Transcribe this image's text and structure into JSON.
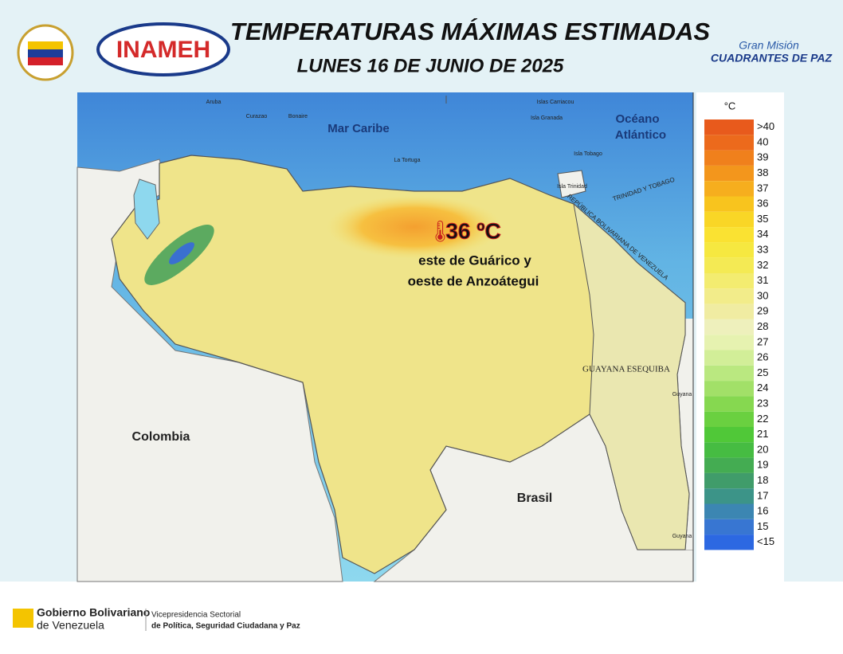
{
  "header": {
    "title": "TEMPERATURAS MÁXIMAS ESTIMADAS",
    "date": "LUNES 16 DE JUNIO DE 2025",
    "logo_left": "INAMEH",
    "logo_right_top": "Gran Misión",
    "logo_right_bottom": "CUADRANTES DE PAZ"
  },
  "map": {
    "labels": [
      "Mar Caribe",
      "Océano",
      "Atlántico",
      "Colombia",
      "Brasil",
      "GUAYANA ESEQUIBA",
      "TRINIDAD Y TOBAGO",
      "REPÚBLICA BOLIVARIANA DE VENEZUELA",
      "Aruba",
      "Curazao",
      "Bonaire",
      "La Tortuga",
      "Isla Trinidad",
      "Isla Tobago",
      "Isla Granada",
      "Islas Carriacou",
      "Guyana",
      "Guyana"
    ],
    "highlight": {
      "value": "36 ºC",
      "line1": "este de Guárico y",
      "line2": "oeste de Anzoátegui"
    }
  },
  "legend": {
    "unit": "°C",
    "entries": [
      {
        "label": ">40",
        "color": "#e85a1c"
      },
      {
        "label": "40",
        "color": "#ec6a1c"
      },
      {
        "label": "39",
        "color": "#f0801c"
      },
      {
        "label": "38",
        "color": "#f3961c"
      },
      {
        "label": "37",
        "color": "#f6ae1e"
      },
      {
        "label": "36",
        "color": "#f8c41e"
      },
      {
        "label": "35",
        "color": "#f9d626"
      },
      {
        "label": "34",
        "color": "#fae232"
      },
      {
        "label": "33",
        "color": "#f6e840"
      },
      {
        "label": "32",
        "color": "#f4ea54"
      },
      {
        "label": "31",
        "color": "#f3ec70"
      },
      {
        "label": "30",
        "color": "#f2ec8a"
      },
      {
        "label": "29",
        "color": "#f0eca2"
      },
      {
        "label": "28",
        "color": "#eef0bc"
      },
      {
        "label": "27",
        "color": "#e6f2b0"
      },
      {
        "label": "26",
        "color": "#d2ee98"
      },
      {
        "label": "25",
        "color": "#bae880"
      },
      {
        "label": "24",
        "color": "#a2e068"
      },
      {
        "label": "23",
        "color": "#86d850"
      },
      {
        "label": "22",
        "color": "#6ad040"
      },
      {
        "label": "21",
        "color": "#50c838"
      },
      {
        "label": "20",
        "color": "#46bc42"
      },
      {
        "label": "19",
        "color": "#44ac52"
      },
      {
        "label": "18",
        "color": "#409c6a"
      },
      {
        "label": "17",
        "color": "#3c9488"
      },
      {
        "label": "16",
        "color": "#3c86b2"
      },
      {
        "label": "15",
        "color": "#3876d2"
      },
      {
        "label": "<15",
        "color": "#2c68e2"
      }
    ]
  },
  "footer": {
    "gov_line1": "Gobierno Bolivariano",
    "gov_line2": "de Venezuela",
    "vice_line1": "Vicepresidencia Sectorial",
    "vice_line2": "de Política, Seguridad Ciudadana y Paz"
  }
}
